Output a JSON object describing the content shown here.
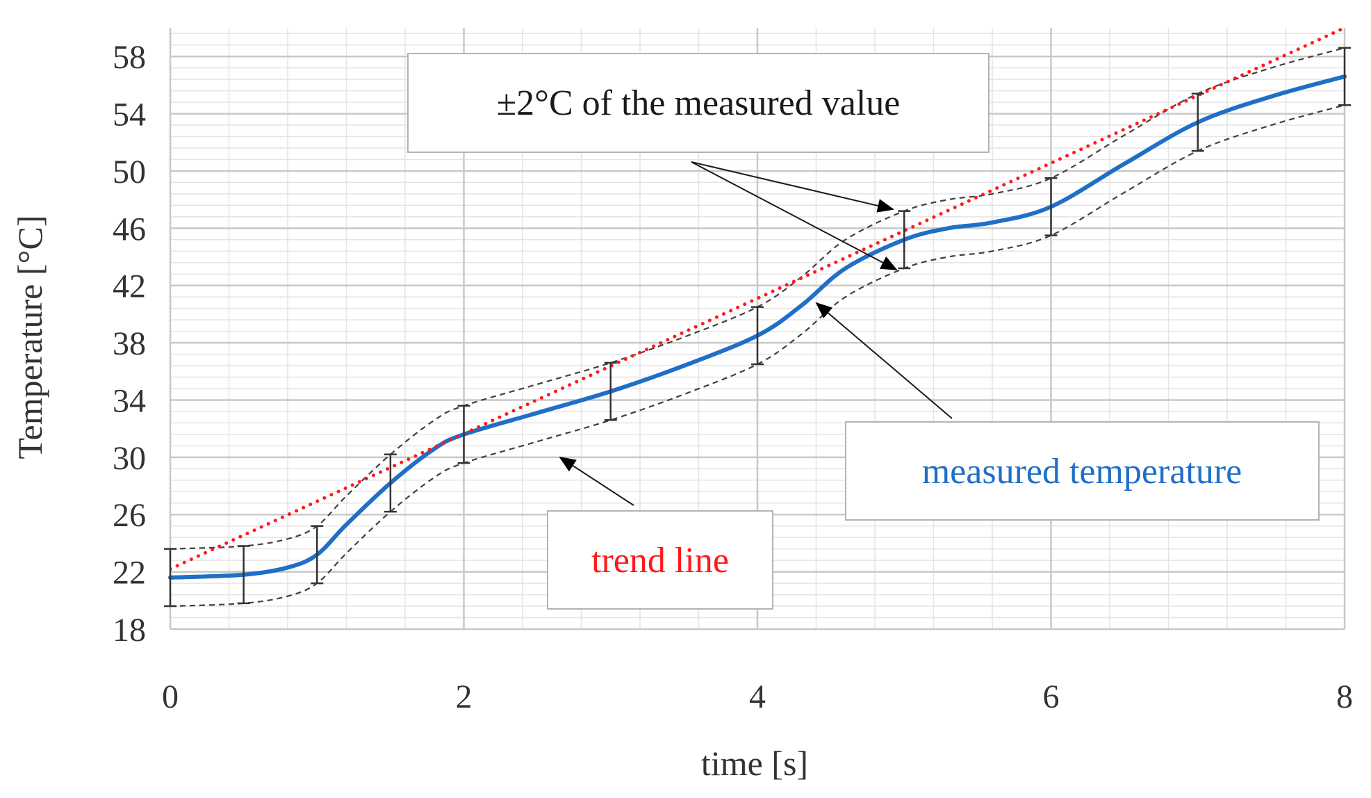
{
  "chart_data": {
    "type": "line",
    "title": "",
    "xlabel": "time [s]",
    "ylabel": "Temperature [°C]",
    "xlim": [
      0,
      8
    ],
    "ylim": [
      18,
      60
    ],
    "x_ticks": [
      0,
      2,
      4,
      6,
      8
    ],
    "y_ticks": [
      18,
      22,
      26,
      30,
      34,
      38,
      42,
      46,
      50,
      54,
      58
    ],
    "x_minor_step": 0.4,
    "y_minor_step": 0.8,
    "error_band": 2,
    "error_bar_x": [
      0,
      0.5,
      1,
      1.5,
      2,
      3,
      4,
      5,
      6,
      7,
      8
    ],
    "series": [
      {
        "name": "measured temperature",
        "color": "#1f6fc8",
        "style": "solid",
        "x": [
          0,
          0.5,
          0.8,
          1.0,
          1.2,
          1.5,
          1.8,
          2.0,
          2.5,
          3.0,
          3.5,
          4.0,
          4.3,
          4.6,
          5.0,
          5.3,
          5.6,
          6.0,
          6.5,
          7.0,
          7.5,
          8.0
        ],
        "y": [
          21.6,
          21.8,
          22.3,
          23.2,
          25.3,
          28.2,
          30.6,
          31.6,
          33.1,
          34.6,
          36.4,
          38.5,
          40.6,
          43.2,
          45.2,
          46.0,
          46.4,
          47.5,
          50.5,
          53.4,
          55.2,
          56.6
        ]
      },
      {
        "name": "trend line",
        "color": "#ff1a1a",
        "style": "dotted",
        "x": [
          0,
          8
        ],
        "y": [
          22.2,
          60.0
        ]
      }
    ],
    "annotations": [
      {
        "name": "error-band-label",
        "text": "±2°C of the measured value",
        "color": "#1a1a1a"
      },
      {
        "name": "measured-label",
        "text": "measured temperature",
        "color": "#1f6fc8"
      },
      {
        "name": "trend-label",
        "text": "trend line",
        "color": "#ff1a1a"
      }
    ]
  }
}
